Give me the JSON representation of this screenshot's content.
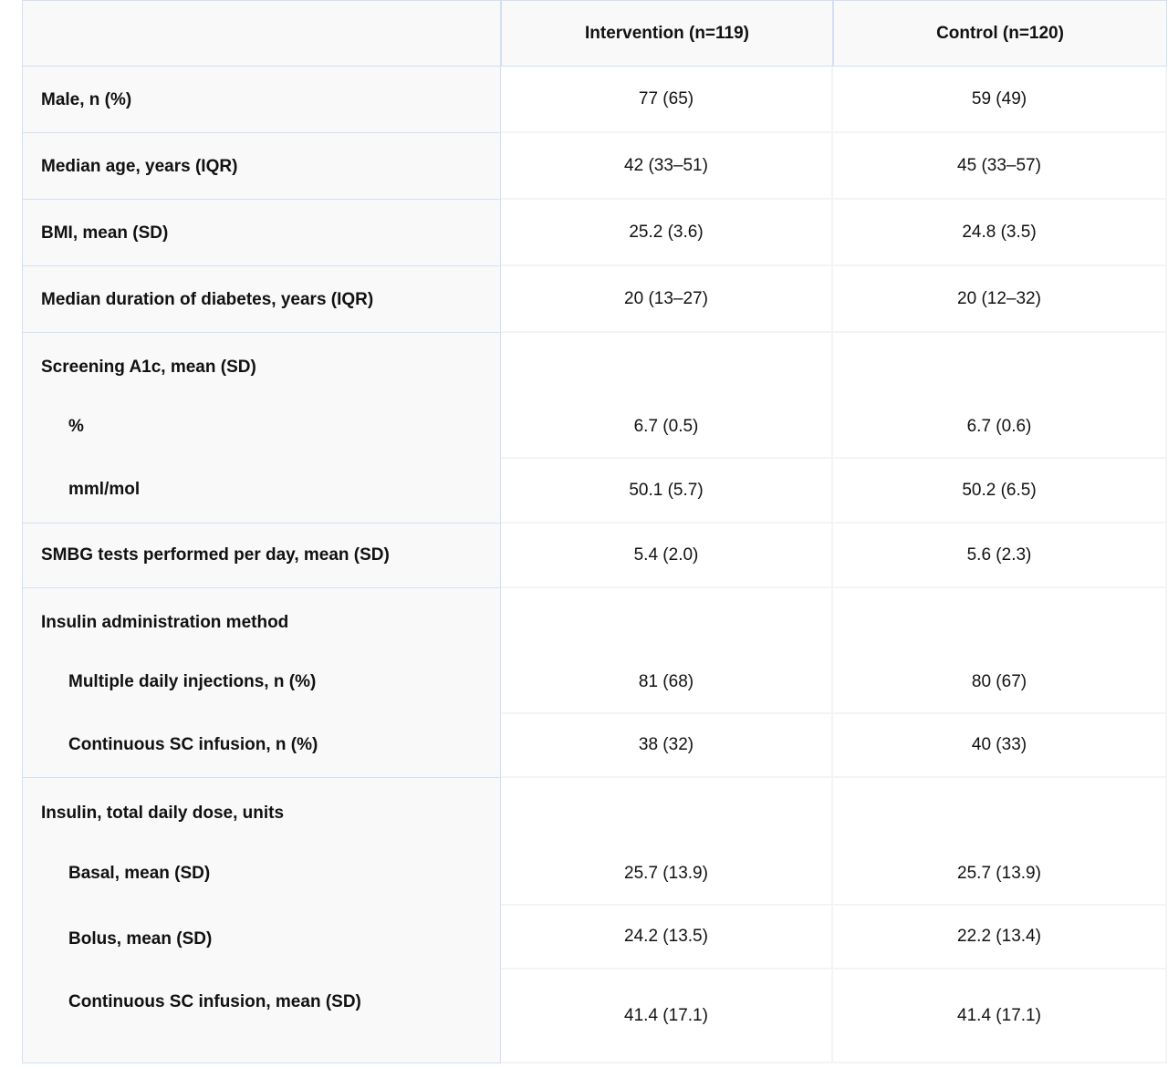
{
  "header": {
    "col0": "",
    "col1": "Intervention (n=119)",
    "col2": "Control (n=120)"
  },
  "rows": [
    {
      "label": "Male, n (%)",
      "intervention": "77 (65)",
      "control": "59 (49)"
    },
    {
      "label": "Median age, years (IQR)",
      "intervention": "42 (33–51)",
      "control": "45 (33–57)"
    },
    {
      "label": "BMI, mean (SD)",
      "intervention": "25.2 (3.6)",
      "control": "24.8 (3.5)"
    },
    {
      "label": "Median duration of diabetes, years (IQR)",
      "intervention": "20 (13–27)",
      "control": "20 (12–32)"
    },
    {
      "label": "Screening A1c, mean (SD)",
      "sub": [
        {
          "label": "%",
          "intervention": "6.7 (0.5)",
          "control": "6.7 (0.6)"
        },
        {
          "label": "mml/mol",
          "intervention": "50.1 (5.7)",
          "control": "50.2 (6.5)"
        }
      ]
    },
    {
      "label": "SMBG tests performed per day, mean (SD)",
      "intervention": "5.4 (2.0)",
      "control": "5.6 (2.3)"
    },
    {
      "label": "Insulin administration method",
      "sub": [
        {
          "label": "Multiple daily injections, n (%)",
          "intervention": "81 (68)",
          "control": "80 (67)"
        },
        {
          "label": "Continuous SC infusion, n (%)",
          "intervention": "38 (32)",
          "control": "40 (33)"
        }
      ]
    },
    {
      "label": "Insulin, total daily dose, units",
      "sub": [
        {
          "label": "Basal, mean (SD)",
          "intervention": "25.7 (13.9)",
          "control": "25.7 (13.9)"
        },
        {
          "label": "Bolus, mean (SD)",
          "intervention": "24.2 (13.5)",
          "control": "22.2 (13.4)"
        },
        {
          "label": "Continuous SC infusion, mean (SD)",
          "intervention": "41.4 (17.1)",
          "control": "41.4 (17.1)"
        }
      ]
    }
  ]
}
